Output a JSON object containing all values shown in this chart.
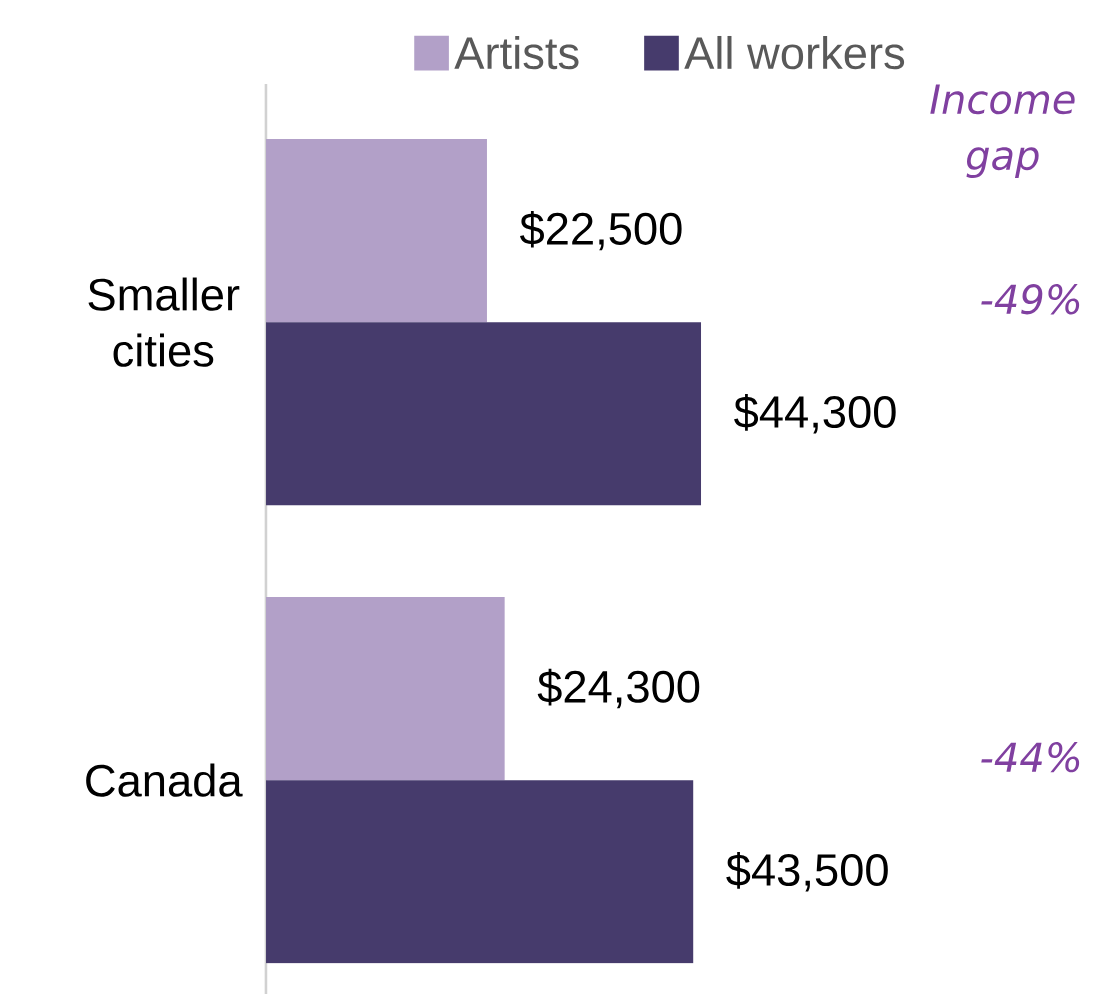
{
  "chart_data": {
    "type": "bar",
    "orientation": "horizontal",
    "categories": [
      "Smaller cities",
      "Canada"
    ],
    "series": [
      {
        "name": "Artists",
        "color": "#b2a0c8",
        "values": [
          22500,
          24300
        ],
        "value_labels": [
          "$22,500",
          "$24,300"
        ]
      },
      {
        "name": "All workers",
        "color": "#463b6c",
        "values": [
          44300,
          43500
        ],
        "value_labels": [
          "$44,300",
          "$43,500"
        ]
      }
    ],
    "annotations": [
      "Income gap",
      "-49%",
      "-44%"
    ],
    "legend": "top",
    "tick_labels": "y"
  }
}
